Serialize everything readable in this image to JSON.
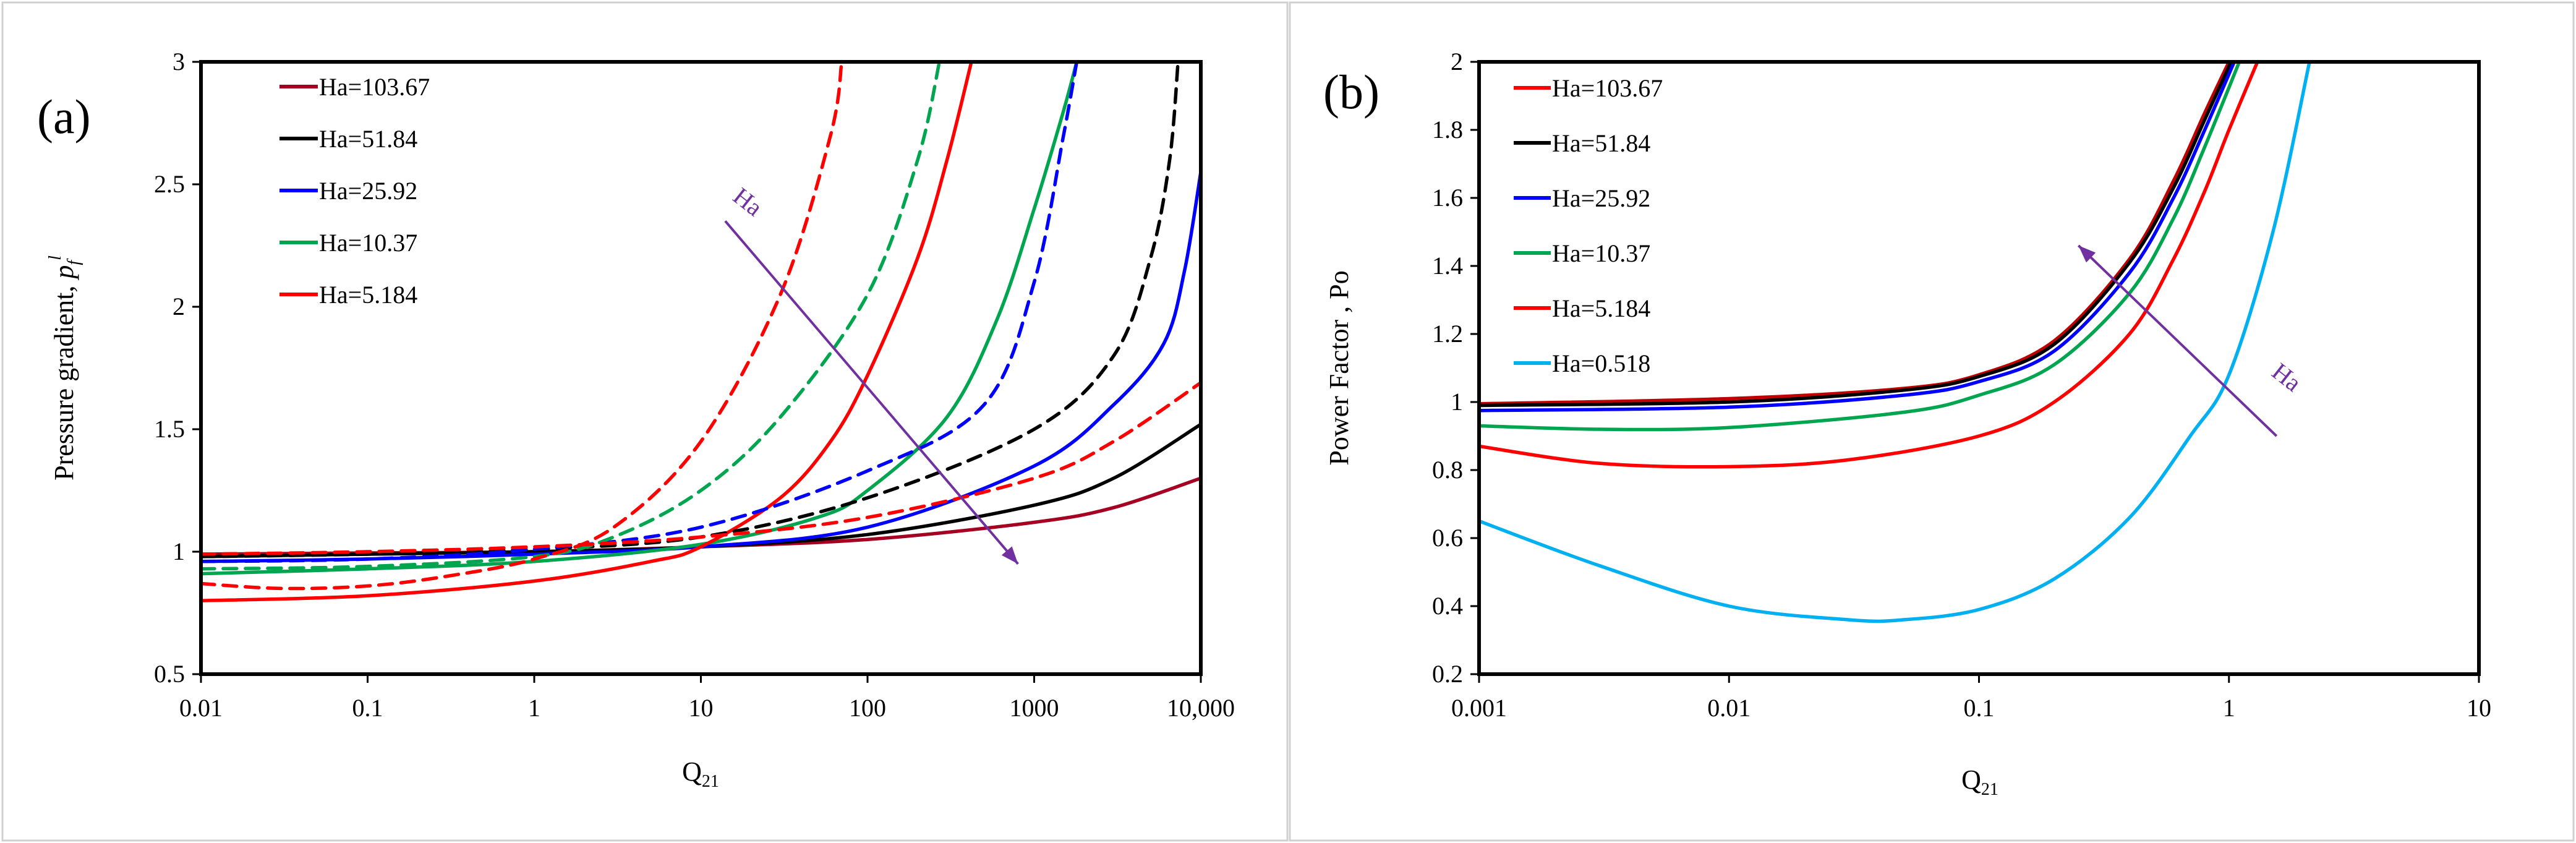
{
  "chart_data": [
    {
      "type": "line",
      "panel_label": "(a)",
      "xscale": "log",
      "xlim": [
        0.01,
        10000
      ],
      "ylim": [
        0.5,
        3
      ],
      "xticks": [
        {
          "value": 0.01,
          "label": "0.01"
        },
        {
          "value": 0.1,
          "label": "0.1"
        },
        {
          "value": 1,
          "label": "1"
        },
        {
          "value": 10,
          "label": "10"
        },
        {
          "value": 100,
          "label": "100"
        },
        {
          "value": 1000,
          "label": "1000"
        },
        {
          "value": 10000,
          "label": "10,000"
        }
      ],
      "yticks": [
        {
          "value": 0.5,
          "label": "0.5"
        },
        {
          "value": 1,
          "label": "1"
        },
        {
          "value": 1.5,
          "label": "1.5"
        },
        {
          "value": 2,
          "label": "2"
        },
        {
          "value": 2.5,
          "label": "2.5"
        },
        {
          "value": 3,
          "label": "3"
        }
      ],
      "xlabel": {
        "main": "Q",
        "sub": "21"
      },
      "ylabel": {
        "main": "Pressure gradient, ",
        "italic": "p",
        "sub": "f",
        "sup": "l"
      },
      "legend": [
        {
          "label": "Ha=103.67",
          "color": "#A50021"
        },
        {
          "label": "Ha=51.84",
          "color": "#000000"
        },
        {
          "label": "Ha=25.92",
          "color": "#0000FF"
        },
        {
          "label": "Ha=10.37",
          "color": "#00A550"
        },
        {
          "label": "Ha=5.184",
          "color": "#FF0000"
        }
      ],
      "annotation": {
        "text": "Ha",
        "color": "#7030A0",
        "arrow_from": [
          14,
          2.35
        ],
        "arrow_to": [
          800,
          0.95
        ]
      },
      "series": [
        {
          "name": "Ha=103.67 (solid)",
          "color": "#A50021",
          "dash": false,
          "x": [
            0.01,
            0.1,
            1,
            10,
            100,
            1000,
            3000,
            10000
          ],
          "y": [
            0.99,
            0.995,
            1.0,
            1.02,
            1.05,
            1.12,
            1.18,
            1.3
          ]
        },
        {
          "name": "Ha=51.84 (solid)",
          "color": "#000000",
          "dash": false,
          "x": [
            0.01,
            0.1,
            1,
            10,
            100,
            1000,
            3000,
            10000
          ],
          "y": [
            0.98,
            0.99,
            1.0,
            1.02,
            1.07,
            1.19,
            1.3,
            1.52
          ]
        },
        {
          "name": "Ha=25.92 (solid)",
          "color": "#0000FF",
          "dash": false,
          "x": [
            0.01,
            0.1,
            1,
            10,
            100,
            1000,
            3000,
            6000,
            8000,
            10000
          ],
          "y": [
            0.96,
            0.97,
            0.99,
            1.02,
            1.1,
            1.35,
            1.6,
            1.85,
            2.15,
            2.55
          ]
        },
        {
          "name": "Ha=10.37 (solid)",
          "color": "#00A550",
          "dash": false,
          "x": [
            0.01,
            0.1,
            1,
            10,
            50,
            100,
            300,
            600,
            1000,
            1500,
            1800
          ],
          "y": [
            0.91,
            0.93,
            0.96,
            1.03,
            1.14,
            1.25,
            1.55,
            1.95,
            2.4,
            2.8,
            3.0
          ]
        },
        {
          "name": "Ha=5.184 (solid)",
          "color": "#FF0000",
          "dash": false,
          "x": [
            0.01,
            0.1,
            1,
            5,
            10,
            30,
            60,
            100,
            200,
            300,
            420
          ],
          "y": [
            0.8,
            0.82,
            0.88,
            0.96,
            1.02,
            1.22,
            1.45,
            1.72,
            2.2,
            2.6,
            3.0
          ]
        },
        {
          "name": "Ha=51.84 (dashed)",
          "color": "#000000",
          "dash": true,
          "x": [
            0.01,
            0.1,
            1,
            10,
            100,
            1000,
            3000,
            5000,
            6500,
            7300
          ],
          "y": [
            0.98,
            0.99,
            1.01,
            1.06,
            1.22,
            1.5,
            1.8,
            2.2,
            2.6,
            3.0
          ]
        },
        {
          "name": "Ha=103.67 (dashed)",
          "color": "#A50021",
          "dash": false,
          "x": [],
          "y": []
        },
        {
          "name": "Ha=25.92 (dashed)",
          "color": "#0000FF",
          "dash": true,
          "x": [
            0.01,
            0.1,
            1,
            10,
            100,
            500,
            1000,
            1500,
            1800
          ],
          "y": [
            0.96,
            0.97,
            1.01,
            1.1,
            1.33,
            1.6,
            2.1,
            2.7,
            3.0
          ]
        },
        {
          "name": "Ha=10.37 (dashed)",
          "color": "#00A550",
          "dash": true,
          "x": [
            0.01,
            0.1,
            1,
            3,
            10,
            30,
            100,
            200,
            270
          ],
          "y": [
            0.93,
            0.94,
            0.98,
            1.06,
            1.25,
            1.55,
            2.05,
            2.6,
            3.0
          ]
        },
        {
          "name": "Ha=5.184 (dashed)",
          "color": "#FF0000",
          "dash": true,
          "x": [
            0.01,
            0.03,
            0.1,
            0.3,
            1,
            3,
            10,
            30,
            60,
            70
          ],
          "y": [
            0.87,
            0.85,
            0.86,
            0.9,
            0.97,
            1.1,
            1.45,
            2.05,
            2.7,
            3.0
          ]
        },
        {
          "name": "Ha=5.184 (dashed, outer)",
          "color": "#FF0000",
          "dash": true,
          "x": [
            0.01,
            0.1,
            1,
            10,
            100,
            1000,
            3000,
            10000
          ],
          "y": [
            0.99,
            1.0,
            1.02,
            1.06,
            1.14,
            1.3,
            1.45,
            1.69
          ]
        }
      ]
    },
    {
      "type": "line",
      "panel_label": "(b)",
      "xscale": "log",
      "xlim": [
        0.001,
        10
      ],
      "ylim": [
        0.2,
        2
      ],
      "xticks": [
        {
          "value": 0.001,
          "label": "0.001"
        },
        {
          "value": 0.01,
          "label": "0.01"
        },
        {
          "value": 0.1,
          "label": "0.1"
        },
        {
          "value": 1,
          "label": "1"
        },
        {
          "value": 10,
          "label": "10"
        }
      ],
      "yticks": [
        {
          "value": 0.2,
          "label": "0.2"
        },
        {
          "value": 0.4,
          "label": "0.4"
        },
        {
          "value": 0.6,
          "label": "0.6"
        },
        {
          "value": 0.8,
          "label": "0.8"
        },
        {
          "value": 1,
          "label": "1"
        },
        {
          "value": 1.2,
          "label": "1.2"
        },
        {
          "value": 1.4,
          "label": "1.4"
        },
        {
          "value": 1.6,
          "label": "1.6"
        },
        {
          "value": 1.8,
          "label": "1.8"
        },
        {
          "value": 2,
          "label": "2"
        }
      ],
      "xlabel": {
        "main": "Q",
        "sub": "21"
      },
      "ylabel": {
        "main": "Power Factor , Po"
      },
      "legend": [
        {
          "label": "Ha=103.67",
          "color": "#FF0000"
        },
        {
          "label": "Ha=51.84",
          "color": "#000000"
        },
        {
          "label": "Ha=25.92",
          "color": "#0000FF"
        },
        {
          "label": "Ha=10.37",
          "color": "#00A550"
        },
        {
          "label": "Ha=5.184",
          "color": "#FF0000"
        },
        {
          "label": "Ha=0.518",
          "color": "#00B0F0"
        }
      ],
      "annotation": {
        "text": "Ha",
        "color": "#7030A0",
        "arrow_from": [
          1.55,
          0.9
        ],
        "arrow_to": [
          0.25,
          1.46
        ]
      },
      "series": [
        {
          "name": "Ha=103.67",
          "color": "#C00000",
          "dash": false,
          "x": [
            0.001,
            0.01,
            0.05,
            0.1,
            0.2,
            0.4,
            0.6,
            0.8,
            1.0
          ],
          "y": [
            0.995,
            1.01,
            1.04,
            1.08,
            1.18,
            1.42,
            1.65,
            1.85,
            2.0
          ]
        },
        {
          "name": "Ha=51.84",
          "color": "#000000",
          "dash": false,
          "x": [
            0.001,
            0.01,
            0.05,
            0.1,
            0.2,
            0.4,
            0.6,
            0.8,
            1.02
          ],
          "y": [
            0.99,
            1.0,
            1.035,
            1.075,
            1.17,
            1.41,
            1.63,
            1.83,
            2.0
          ]
        },
        {
          "name": "Ha=25.92",
          "color": "#0000FF",
          "dash": false,
          "x": [
            0.001,
            0.01,
            0.05,
            0.1,
            0.2,
            0.4,
            0.6,
            0.8,
            1.05
          ],
          "y": [
            0.975,
            0.985,
            1.02,
            1.06,
            1.15,
            1.38,
            1.6,
            1.8,
            2.0
          ]
        },
        {
          "name": "Ha=10.37",
          "color": "#00A550",
          "dash": false,
          "x": [
            0.001,
            0.003,
            0.01,
            0.05,
            0.1,
            0.2,
            0.4,
            0.6,
            0.8,
            1.1
          ],
          "y": [
            0.93,
            0.92,
            0.925,
            0.97,
            1.02,
            1.11,
            1.32,
            1.54,
            1.75,
            2.0
          ]
        },
        {
          "name": "Ha=5.184",
          "color": "#FF0000",
          "dash": false,
          "x": [
            0.001,
            0.003,
            0.01,
            0.03,
            0.1,
            0.2,
            0.4,
            0.6,
            0.8,
            1.0,
            1.3
          ],
          "y": [
            0.87,
            0.82,
            0.81,
            0.83,
            0.9,
            1.0,
            1.2,
            1.42,
            1.62,
            1.8,
            2.0
          ]
        },
        {
          "name": "Ha=0.518",
          "color": "#00B0F0",
          "dash": false,
          "x": [
            0.001,
            0.003,
            0.01,
            0.03,
            0.05,
            0.1,
            0.2,
            0.4,
            0.7,
            1.0,
            1.5,
            2.1
          ],
          "y": [
            0.65,
            0.52,
            0.4,
            0.36,
            0.36,
            0.39,
            0.48,
            0.66,
            0.9,
            1.08,
            1.5,
            2.0
          ]
        }
      ]
    }
  ]
}
